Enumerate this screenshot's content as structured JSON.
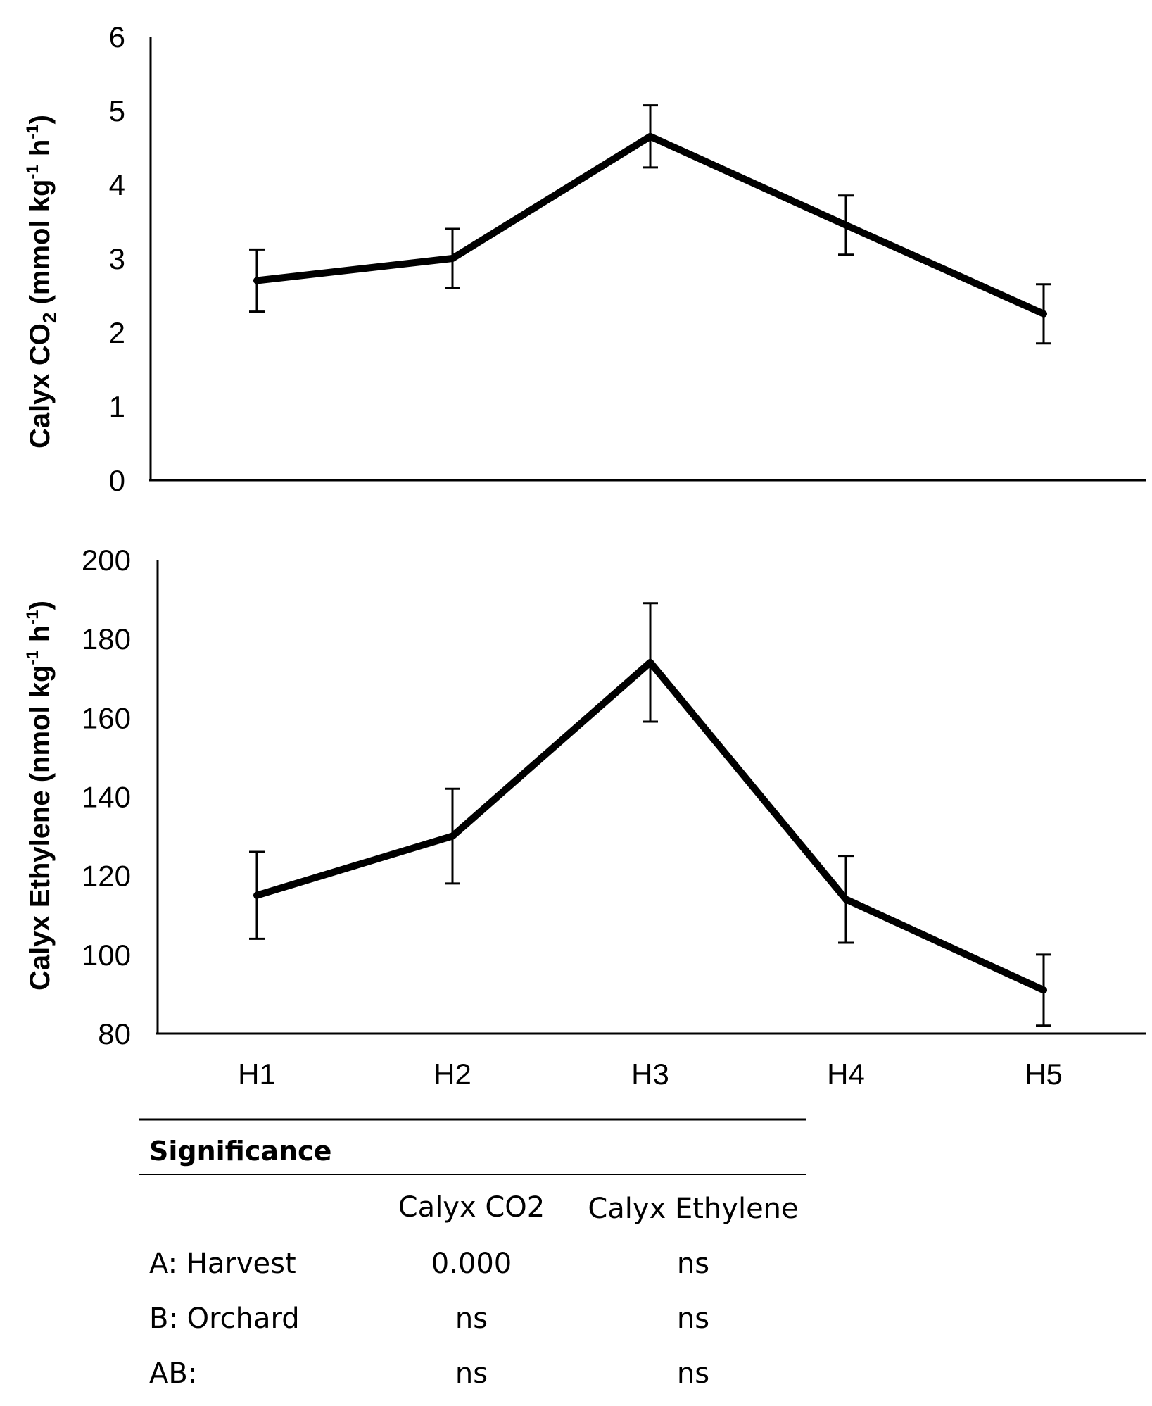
{
  "chart_data": [
    {
      "type": "line",
      "categories": [
        "H1",
        "H2",
        "H3",
        "H4",
        "H5"
      ],
      "values": [
        2.7,
        3.0,
        4.65,
        3.45,
        2.25
      ],
      "error": [
        0.42,
        0.4,
        0.42,
        0.4,
        0.4
      ],
      "ylabel": {
        "main": "Calyx CO",
        "sub": "2",
        "unit": "(mmol kg",
        "sup1": "-1",
        "unit_mid": " h",
        "sup2": "-1",
        "close": ")"
      },
      "yticks": [
        "0",
        "1",
        "2",
        "3",
        "4",
        "5",
        "6"
      ],
      "ylim": [
        0,
        6
      ]
    },
    {
      "type": "line",
      "categories": [
        "H1",
        "H2",
        "H3",
        "H4",
        "H5"
      ],
      "values": [
        115,
        130,
        174,
        114,
        91
      ],
      "error": [
        11,
        12,
        15,
        11,
        9
      ],
      "ylabel": {
        "main": "Calyx Ethylene",
        "unit": " (nmol kg",
        "sup1": "-1",
        "unit_mid": " h",
        "sup2": "-1",
        "close": ")"
      },
      "yticks": [
        "80",
        "100",
        "120",
        "140",
        "160",
        "180",
        "200"
      ],
      "ylim": [
        80,
        200
      ]
    }
  ],
  "significance": {
    "title": "Significance",
    "col1": "Calyx CO2",
    "col2": "Calyx Ethylene",
    "rows": [
      {
        "label": "A: Harvest",
        "v1": "0.000",
        "v2": "ns"
      },
      {
        "label": "B: Orchard",
        "v1": "ns",
        "v2": "ns"
      },
      {
        "label": "AB:",
        "v1": "ns",
        "v2": "ns"
      }
    ]
  }
}
